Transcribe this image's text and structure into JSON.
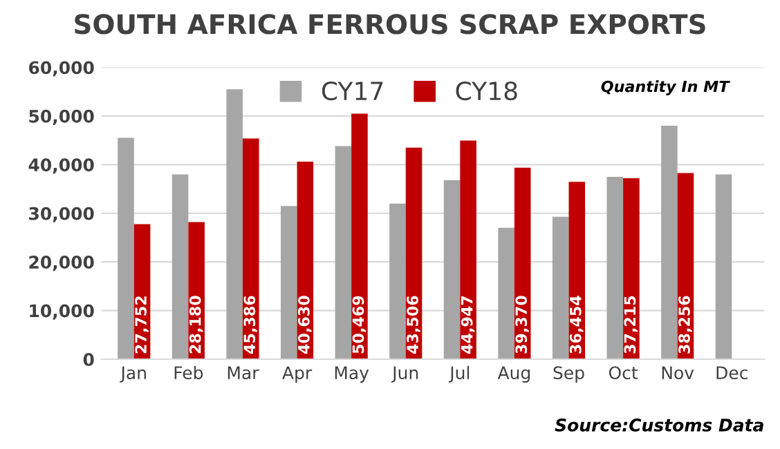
{
  "chart_data": {
    "type": "bar",
    "title": "SOUTH AFRICA FERROUS SCRAP EXPORTS",
    "categories": [
      "Jan",
      "Feb",
      "Mar",
      "Apr",
      "May",
      "Jun",
      "Jul",
      "Aug",
      "Sep",
      "Oct",
      "Nov",
      "Dec"
    ],
    "series": [
      {
        "name": "CY17",
        "color": "#a6a6a6",
        "values": [
          45500,
          38000,
          55500,
          31500,
          43800,
          32000,
          36800,
          27000,
          29300,
          37500,
          48000,
          38000
        ]
      },
      {
        "name": "CY18",
        "color": "#c00000",
        "values": [
          27752,
          28180,
          45386,
          40630,
          50469,
          43506,
          44947,
          39370,
          36454,
          37215,
          38256,
          null
        ],
        "value_labels": [
          "27,752",
          "28,180",
          "45,386",
          "40,630",
          "50,469",
          "43,506",
          "44,947",
          "39,370",
          "36,454",
          "37,215",
          "38,256",
          null
        ]
      }
    ],
    "ylim": [
      0,
      60000
    ],
    "yticks": [
      {
        "value": 0,
        "label": "0"
      },
      {
        "value": 10000,
        "label": "10,000"
      },
      {
        "value": 20000,
        "label": "20,000"
      },
      {
        "value": 30000,
        "label": "30,000"
      },
      {
        "value": 40000,
        "label": "40,000"
      },
      {
        "value": 50000,
        "label": "50,000"
      },
      {
        "value": 60000,
        "label": "60,000"
      }
    ],
    "grid": "y",
    "legend": "top",
    "annotations": [
      "Quantity In MT",
      "Source:Customs Data"
    ]
  }
}
